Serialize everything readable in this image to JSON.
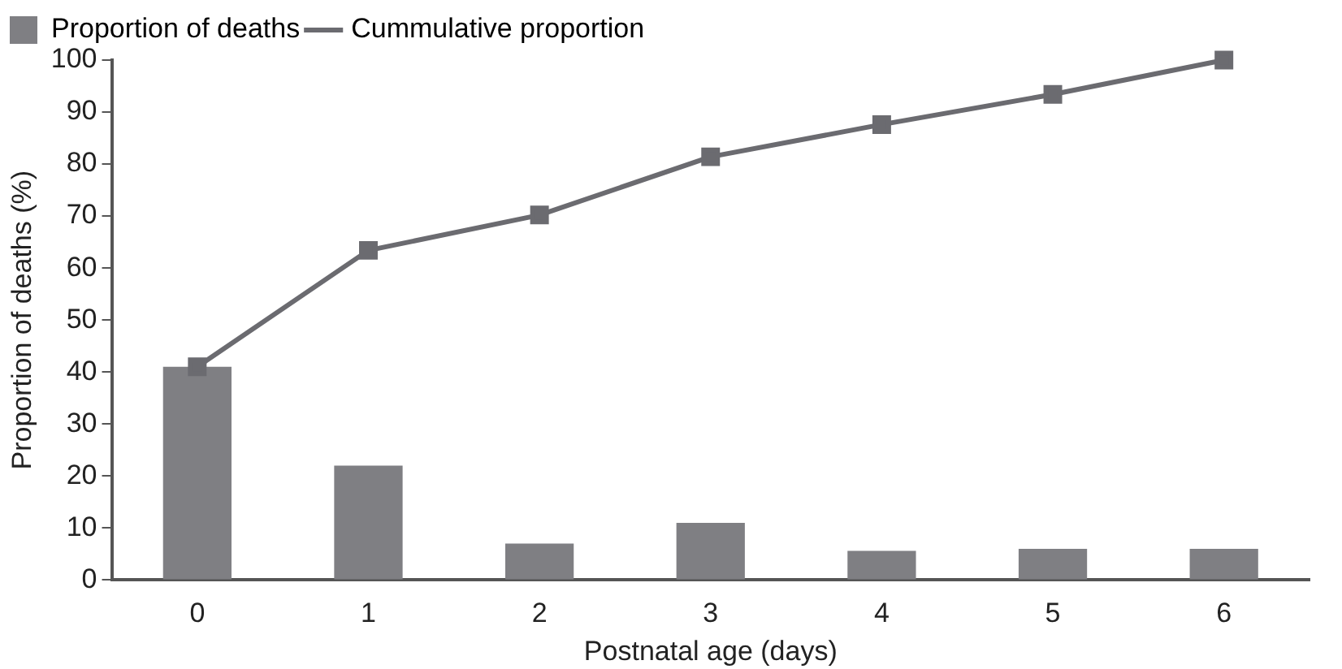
{
  "chart_data": {
    "type": "bar",
    "xlabel": "Postnatal age (days)",
    "ylabel": "Proportion of deaths (%)",
    "categories": [
      "0",
      "1",
      "2",
      "3",
      "4",
      "5",
      "6"
    ],
    "series": [
      {
        "name": "Proportion of deaths",
        "color": "#7f7f83",
        "values": [
          41,
          22,
          7,
          11,
          5.6,
          6,
          6
        ]
      },
      {
        "name": "Cummulative proportion",
        "type": "line",
        "color": "#6b6b70",
        "values": [
          41,
          63.4,
          70.2,
          81.4,
          87.6,
          93.4,
          100
        ],
        "marker": "square"
      }
    ],
    "ylim": [
      0,
      100
    ],
    "yticks": [
      0,
      10,
      20,
      30,
      40,
      50,
      60,
      70,
      80,
      90,
      100
    ],
    "grid": false,
    "legend": "top left"
  }
}
